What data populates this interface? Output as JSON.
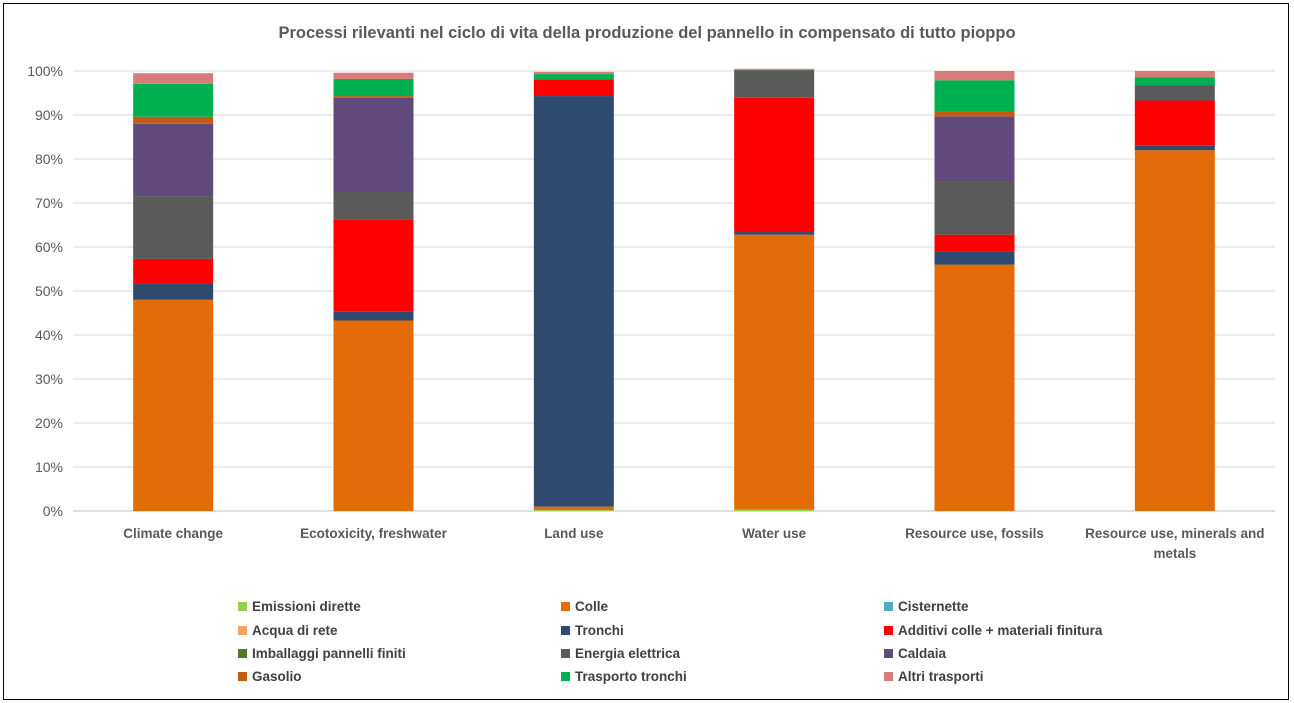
{
  "chart_data": {
    "type": "bar",
    "stacked": true,
    "title": "Processi rilevanti nel ciclo di vita della produzione del pannello in compensato di tutto pioppo",
    "categories": [
      "Climate change",
      "Ecotoxicity, freshwater",
      "Land use",
      "Water use",
      "Resource use, fossils",
      "Resource use, minerals and metals"
    ],
    "category_lines": [
      [
        "Climate change"
      ],
      [
        "Ecotoxicity, freshwater"
      ],
      [
        "Land use"
      ],
      [
        "Water use"
      ],
      [
        "Resource use, fossils"
      ],
      [
        "Resource use, minerals and",
        "metals"
      ]
    ],
    "ylim": [
      0,
      100
    ],
    "yticks": [
      0,
      10,
      20,
      30,
      40,
      50,
      60,
      70,
      80,
      90,
      100
    ],
    "ytick_labels": [
      "0%",
      "10%",
      "20%",
      "30%",
      "40%",
      "50%",
      "60%",
      "70%",
      "80%",
      "90%",
      "100%"
    ],
    "grid": true,
    "legend_position": "bottom",
    "series": [
      {
        "name": "Emissioni dirette",
        "color": "#92D050",
        "values": [
          0,
          0,
          0.2,
          0.3,
          0,
          0
        ]
      },
      {
        "name": "Acqua di rete",
        "color": "#F4A460",
        "values": [
          0,
          0,
          0,
          0,
          0,
          0
        ]
      },
      {
        "name": "Imballaggi pannelli finiti",
        "color": "#4E7A27",
        "values": [
          0,
          0,
          0,
          0,
          0,
          0
        ]
      },
      {
        "name": "Gasolio",
        "color": "#C55A11",
        "values": [
          0,
          0,
          0,
          0,
          0,
          0
        ]
      },
      {
        "name": "Colle",
        "color": "#E36C09",
        "values": [
          48,
          43.3,
          0.8,
          62.5,
          56,
          82
        ]
      },
      {
        "name": "Tronchi",
        "color": "#2E4B6F",
        "values": [
          3.8,
          2,
          93.3,
          0.6,
          3,
          1
        ]
      },
      {
        "name": "Energia elettrica",
        "color": "#5A5A5A",
        "values": [
          14.2,
          6.2,
          0,
          6.3,
          12.2,
          3.5
        ]
      },
      {
        "name": "Trasporto tronchi",
        "color": "#00B050",
        "values": [
          7.5,
          3.9,
          1.2,
          0.1,
          7,
          1.8
        ]
      },
      {
        "name": "Cisternette",
        "color": "#4BACC6",
        "values": [
          0,
          0,
          0,
          0,
          0,
          0
        ]
      },
      {
        "name": "Additivi colle + materiali finitura",
        "color": "#FF0000",
        "values": [
          5.5,
          21,
          3.8,
          30.5,
          3.8,
          10.3
        ]
      },
      {
        "name": "Caldaia",
        "color": "#604A7B",
        "values": [
          16.5,
          21.4,
          0,
          0,
          14.7,
          0
        ]
      },
      {
        "name": "Altri trasporti",
        "color": "#DA7B7B",
        "values": [
          2.4,
          1.4,
          0.5,
          0.2,
          2.1,
          1.4
        ]
      }
    ],
    "stack_order": [
      "Emissioni dirette",
      "Acqua di rete",
      "Colle",
      "Tronchi",
      "Additivi colle + materiali finitura",
      "Imballaggi pannelli finiti",
      "Energia elettrica",
      "Caldaia",
      "Gasolio",
      "Trasporto tronchi",
      "Altri trasporti"
    ],
    "stack_extra": {
      "Gasolio": [
        1.6,
        0.4,
        0,
        0,
        1.2,
        0
      ]
    },
    "legend_grid": [
      [
        "Emissioni dirette",
        "Colle",
        "Cisternette"
      ],
      [
        "Acqua di rete",
        "Tronchi",
        "Additivi colle + materiali finitura"
      ],
      [
        "Imballaggi pannelli finiti",
        "Energia elettrica",
        "Caldaia"
      ],
      [
        "Gasolio",
        "Trasporto tronchi",
        "Altri trasporti"
      ]
    ]
  }
}
